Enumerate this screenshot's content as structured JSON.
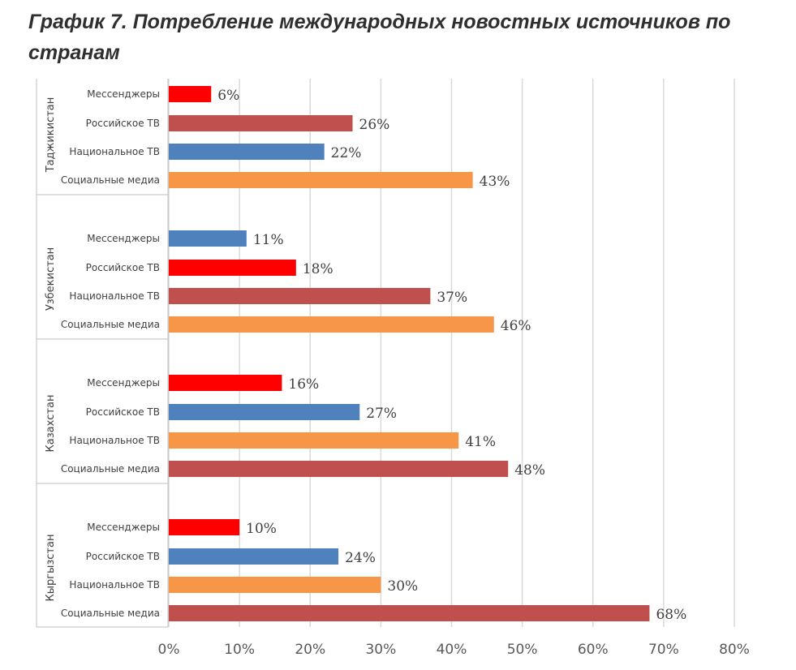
{
  "title": "График 7. Потребление международных новостных источников по странам",
  "chart_data": {
    "type": "bar",
    "orientation": "horizontal",
    "title": "График 7. Потребление международных новостных источников по странам",
    "xlim": [
      0,
      80
    ],
    "x_ticks": [
      "0%",
      "10%",
      "20%",
      "30%",
      "40%",
      "50%",
      "60%",
      "70%",
      "80%"
    ],
    "grid": true,
    "value_suffix": "%",
    "colors": {
      "red": "#ff0000",
      "darkred": "#c0504d",
      "blue": "#4f81bd",
      "orange": "#f79646"
    },
    "groups": [
      {
        "name": "Таджикистан",
        "bars": [
          {
            "label": "Мессенджеры",
            "value": 6,
            "color": "red"
          },
          {
            "label": "Российское ТВ",
            "value": 26,
            "color": "darkred"
          },
          {
            "label": "Национальное ТВ",
            "value": 22,
            "color": "blue"
          },
          {
            "label": "Социальные медиа",
            "value": 43,
            "color": "orange"
          }
        ]
      },
      {
        "name": "Узбекистан",
        "bars": [
          {
            "label": "Мессенджеры",
            "value": 11,
            "color": "blue"
          },
          {
            "label": "Российское ТВ",
            "value": 18,
            "color": "red"
          },
          {
            "label": "Национальное ТВ",
            "value": 37,
            "color": "darkred"
          },
          {
            "label": "Социальные медиа",
            "value": 46,
            "color": "orange"
          }
        ]
      },
      {
        "name": "Казахстан",
        "bars": [
          {
            "label": "Мессенджеры",
            "value": 16,
            "color": "red"
          },
          {
            "label": "Российское ТВ",
            "value": 27,
            "color": "blue"
          },
          {
            "label": "Национальное ТВ",
            "value": 41,
            "color": "orange"
          },
          {
            "label": "Социальные медиа",
            "value": 48,
            "color": "darkred"
          }
        ]
      },
      {
        "name": "Кыргызстан",
        "bars": [
          {
            "label": "Мессенджеры",
            "value": 10,
            "color": "red"
          },
          {
            "label": "Российское ТВ",
            "value": 24,
            "color": "blue"
          },
          {
            "label": "Национальное ТВ",
            "value": 30,
            "color": "orange"
          },
          {
            "label": "Социальные медиа",
            "value": 68,
            "color": "darkred"
          }
        ]
      }
    ]
  }
}
